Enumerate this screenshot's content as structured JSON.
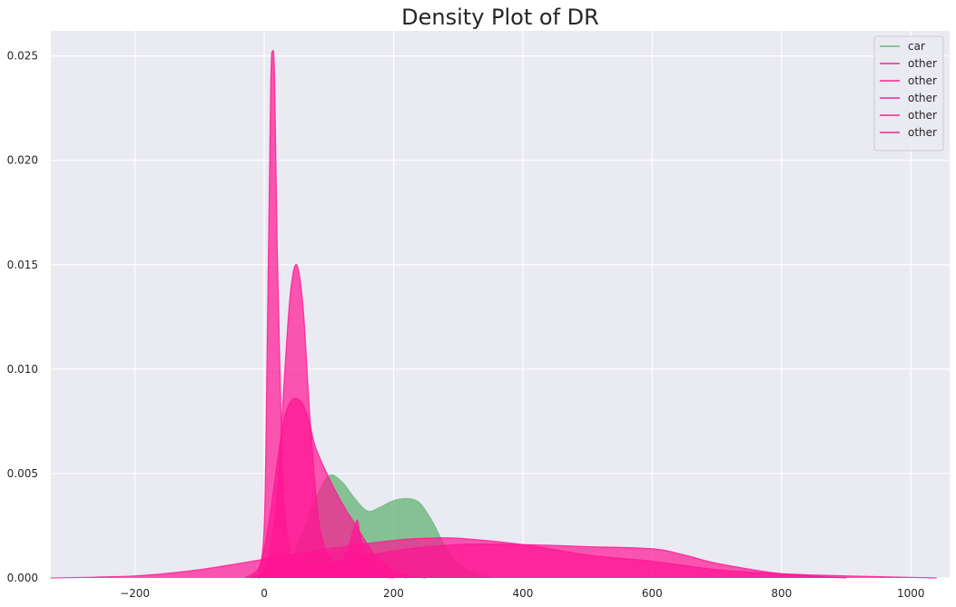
{
  "chart_data": {
    "type": "area",
    "title": "Density Plot of DR",
    "xlabel": "",
    "ylabel": "",
    "xlim": [
      -330,
      1060
    ],
    "ylim": [
      0,
      0.0262
    ],
    "xticks": [
      -200,
      0,
      200,
      400,
      600,
      800,
      1000
    ],
    "xtick_labels": [
      "−200",
      "0",
      "200",
      "400",
      "600",
      "800",
      "1000"
    ],
    "yticks": [
      0,
      0.005,
      0.01,
      0.015,
      0.02,
      0.025
    ],
    "ytick_labels": [
      "0.000",
      "0.005",
      "0.010",
      "0.015",
      "0.020",
      "0.025"
    ],
    "grid": true,
    "legend_position": "top-right",
    "background_color": "#EAEAF2",
    "series": [
      {
        "name": "car",
        "color": "#6DB67C",
        "points": [
          [
            -10,
            0
          ],
          [
            20,
            0.0002
          ],
          [
            40,
            0.0008
          ],
          [
            60,
            0.0022
          ],
          [
            80,
            0.0038
          ],
          [
            100,
            0.0049
          ],
          [
            120,
            0.0046
          ],
          [
            140,
            0.0038
          ],
          [
            160,
            0.0032
          ],
          [
            180,
            0.0034
          ],
          [
            200,
            0.0037
          ],
          [
            220,
            0.0038
          ],
          [
            240,
            0.0036
          ],
          [
            260,
            0.0027
          ],
          [
            280,
            0.0015
          ],
          [
            300,
            0.0007
          ],
          [
            320,
            0.0003
          ],
          [
            350,
            0
          ]
        ]
      },
      {
        "name": "other",
        "color": "#FF1493",
        "points": [
          [
            -10,
            0
          ],
          [
            0,
            0.0025
          ],
          [
            5,
            0.012
          ],
          [
            10,
            0.0235
          ],
          [
            13,
            0.0252
          ],
          [
            16,
            0.024
          ],
          [
            20,
            0.016
          ],
          [
            25,
            0.009
          ],
          [
            30,
            0.004
          ],
          [
            40,
            0.0012
          ],
          [
            50,
            0.0009
          ],
          [
            60,
            0.0006
          ],
          [
            80,
            0.0004
          ],
          [
            120,
            0.0008
          ],
          [
            140,
            0.0025
          ],
          [
            145,
            0.0027
          ],
          [
            150,
            0.0018
          ],
          [
            170,
            0.0004
          ],
          [
            220,
            0
          ]
        ]
      },
      {
        "name": "other",
        "color": "#FF1493",
        "points": [
          [
            -10,
            0
          ],
          [
            0,
            0.0003
          ],
          [
            10,
            0.0015
          ],
          [
            20,
            0.004
          ],
          [
            30,
            0.009
          ],
          [
            40,
            0.0135
          ],
          [
            50,
            0.015
          ],
          [
            60,
            0.013
          ],
          [
            70,
            0.008
          ],
          [
            80,
            0.004
          ],
          [
            90,
            0.0018
          ],
          [
            110,
            0.0006
          ],
          [
            140,
            0.0002
          ],
          [
            200,
            0
          ]
        ]
      },
      {
        "name": "other",
        "color": "#FF1493",
        "points": [
          [
            -30,
            0
          ],
          [
            -10,
            0.0004
          ],
          [
            0,
            0.0014
          ],
          [
            10,
            0.0032
          ],
          [
            20,
            0.0055
          ],
          [
            30,
            0.0075
          ],
          [
            40,
            0.0084
          ],
          [
            50,
            0.0086
          ],
          [
            60,
            0.0083
          ],
          [
            70,
            0.0074
          ],
          [
            80,
            0.0062
          ],
          [
            100,
            0.0048
          ],
          [
            120,
            0.0036
          ],
          [
            140,
            0.0026
          ],
          [
            160,
            0.0016
          ],
          [
            180,
            0.0008
          ],
          [
            210,
            0.0002
          ],
          [
            250,
            0
          ]
        ]
      },
      {
        "name": "other",
        "color": "#FF1493",
        "points": [
          [
            -330,
            0
          ],
          [
            -200,
            0.0001
          ],
          [
            -100,
            0.0004
          ],
          [
            0,
            0.0009
          ],
          [
            100,
            0.0014
          ],
          [
            200,
            0.0018
          ],
          [
            250,
            0.0019
          ],
          [
            300,
            0.0019
          ],
          [
            400,
            0.0016
          ],
          [
            500,
            0.0011
          ],
          [
            600,
            0.0008
          ],
          [
            700,
            0.0004
          ],
          [
            800,
            0.0002
          ],
          [
            900,
            0.0001
          ],
          [
            1040,
            0
          ]
        ]
      },
      {
        "name": "other",
        "color": "#FF1493",
        "points": [
          [
            -20,
            0
          ],
          [
            0,
            0.0002
          ],
          [
            100,
            0.0007
          ],
          [
            200,
            0.0013
          ],
          [
            300,
            0.0016
          ],
          [
            400,
            0.0016
          ],
          [
            500,
            0.0015
          ],
          [
            600,
            0.0014
          ],
          [
            650,
            0.0011
          ],
          [
            700,
            0.0007
          ],
          [
            800,
            0.0002
          ],
          [
            900,
            0
          ]
        ]
      }
    ]
  }
}
